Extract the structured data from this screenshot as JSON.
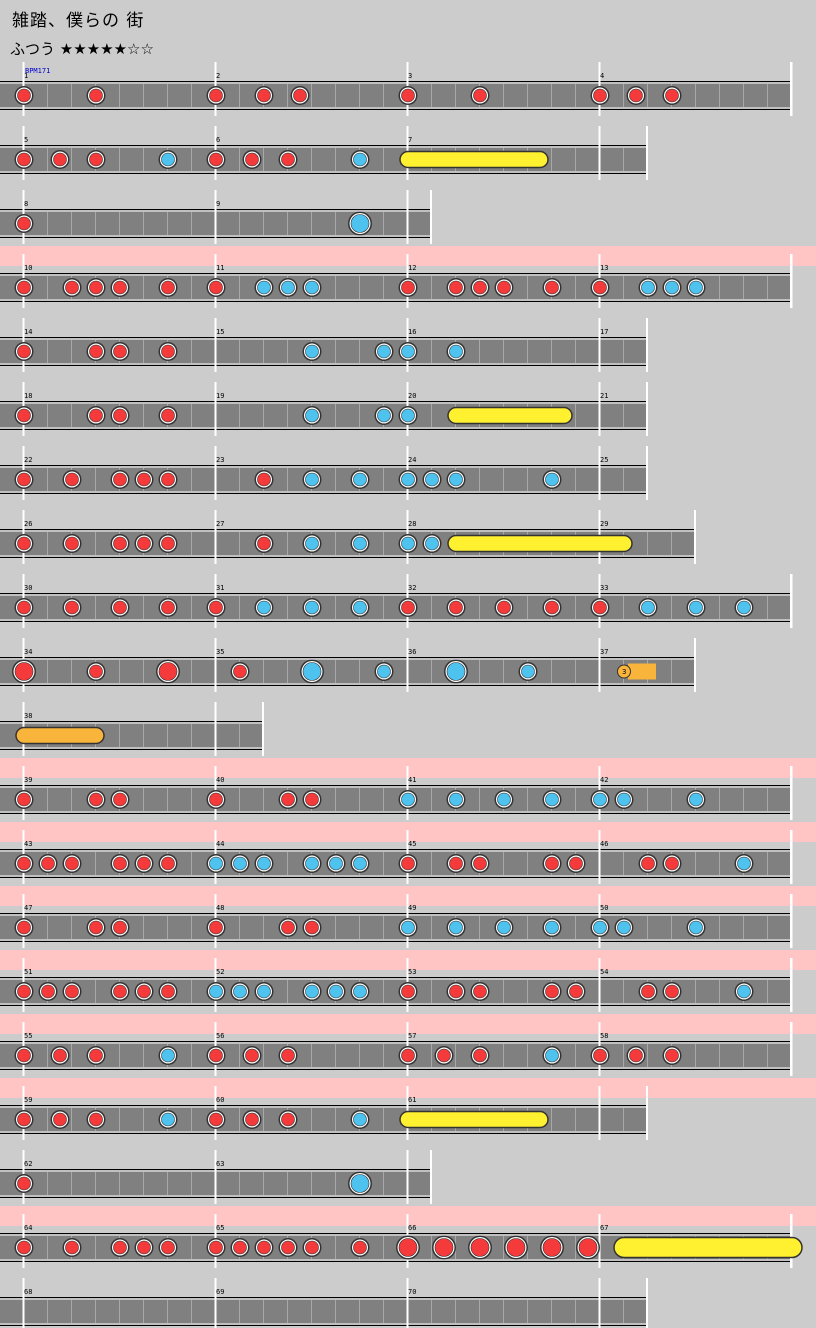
{
  "song": {
    "title": "雑踏、僕らの 街",
    "course": "ふつう",
    "stars": "★★★★★☆☆"
  },
  "bpm_label": "BPM171",
  "colors": {
    "background": "#cccccc",
    "gogo_band": "#ffc4c4",
    "lane": "#808080",
    "don": "#f43a3a",
    "ka": "#4fc3f0",
    "drumroll": "#fff030",
    "balloon": "#f9b43c"
  },
  "rows": [
    {
      "measures": [
        1,
        2,
        3,
        4
      ],
      "beats": 32,
      "gogo": false,
      "notes": [
        [
          0,
          "d"
        ],
        [
          3,
          "d"
        ],
        [
          8,
          "d"
        ],
        [
          10,
          "d"
        ],
        [
          11.5,
          "d"
        ],
        [
          16,
          "d"
        ],
        [
          19,
          "d"
        ],
        [
          24,
          "d"
        ],
        [
          25.5,
          "d"
        ],
        [
          27,
          "d"
        ]
      ]
    },
    {
      "measures": [
        5,
        6,
        7
      ],
      "beats": 26,
      "gogo": false,
      "notes": [
        [
          0,
          "d"
        ],
        [
          1.5,
          "d"
        ],
        [
          3,
          "d"
        ],
        [
          6,
          "k"
        ],
        [
          8,
          "d"
        ],
        [
          9.5,
          "d"
        ],
        [
          11,
          "d"
        ],
        [
          14,
          "k"
        ],
        [
          16,
          "r",
          21.5
        ]
      ]
    },
    {
      "measures": [
        8,
        9
      ],
      "beats": 17,
      "gogo": false,
      "notes": [
        [
          0,
          "d"
        ],
        [
          14,
          "K"
        ]
      ]
    },
    {
      "measures": [
        10,
        11,
        12,
        13
      ],
      "beats": 32,
      "gogo": true,
      "notes": [
        [
          0,
          "d"
        ],
        [
          2,
          "d"
        ],
        [
          3,
          "d"
        ],
        [
          4,
          "d"
        ],
        [
          6,
          "d"
        ],
        [
          8,
          "d"
        ],
        [
          10,
          "k"
        ],
        [
          11,
          "k"
        ],
        [
          12,
          "k"
        ],
        [
          16,
          "d"
        ],
        [
          18,
          "d"
        ],
        [
          19,
          "d"
        ],
        [
          20,
          "d"
        ],
        [
          22,
          "d"
        ],
        [
          24,
          "d"
        ],
        [
          26,
          "k"
        ],
        [
          27,
          "k"
        ],
        [
          28,
          "k"
        ]
      ]
    },
    {
      "measures": [
        14,
        15,
        16,
        17
      ],
      "beats": 26,
      "gogo": false,
      "notes": [
        [
          0,
          "d"
        ],
        [
          3,
          "d"
        ],
        [
          4,
          "d"
        ],
        [
          6,
          "d"
        ],
        [
          12,
          "k"
        ],
        [
          15,
          "k"
        ],
        [
          16,
          "k"
        ],
        [
          18,
          "k"
        ]
      ]
    },
    {
      "measures": [
        18,
        19,
        20,
        21
      ],
      "beats": 26,
      "gogo": false,
      "notes": [
        [
          0,
          "d"
        ],
        [
          3,
          "d"
        ],
        [
          4,
          "d"
        ],
        [
          6,
          "d"
        ],
        [
          12,
          "k"
        ],
        [
          15,
          "k"
        ],
        [
          16,
          "k"
        ],
        [
          18,
          "r",
          22.5
        ]
      ]
    },
    {
      "measures": [
        22,
        23,
        24,
        25
      ],
      "beats": 26,
      "gogo": false,
      "notes": [
        [
          0,
          "d"
        ],
        [
          2,
          "d"
        ],
        [
          4,
          "d"
        ],
        [
          5,
          "d"
        ],
        [
          6,
          "d"
        ],
        [
          10,
          "d"
        ],
        [
          12,
          "k"
        ],
        [
          14,
          "k"
        ],
        [
          16,
          "k"
        ],
        [
          17,
          "k"
        ],
        [
          18,
          "k"
        ],
        [
          22,
          "k"
        ]
      ]
    },
    {
      "measures": [
        26,
        27,
        28,
        29
      ],
      "beats": 28,
      "gogo": false,
      "notes": [
        [
          0,
          "d"
        ],
        [
          2,
          "d"
        ],
        [
          4,
          "d"
        ],
        [
          5,
          "d"
        ],
        [
          6,
          "d"
        ],
        [
          10,
          "d"
        ],
        [
          12,
          "k"
        ],
        [
          14,
          "k"
        ],
        [
          16,
          "k"
        ],
        [
          17,
          "k"
        ],
        [
          18,
          "r",
          25
        ]
      ]
    },
    {
      "measures": [
        30,
        31,
        32,
        33
      ],
      "beats": 32,
      "gogo": false,
      "notes": [
        [
          0,
          "d"
        ],
        [
          2,
          "d"
        ],
        [
          4,
          "d"
        ],
        [
          6,
          "d"
        ],
        [
          8,
          "d"
        ],
        [
          10,
          "k"
        ],
        [
          12,
          "k"
        ],
        [
          14,
          "k"
        ],
        [
          16,
          "d"
        ],
        [
          18,
          "d"
        ],
        [
          20,
          "d"
        ],
        [
          22,
          "d"
        ],
        [
          24,
          "d"
        ],
        [
          26,
          "k"
        ],
        [
          28,
          "k"
        ],
        [
          30,
          "k"
        ]
      ]
    },
    {
      "measures": [
        34,
        35,
        36,
        37
      ],
      "beats": 28,
      "gogo": false,
      "notes": [
        [
          0,
          "D"
        ],
        [
          3,
          "d"
        ],
        [
          6,
          "D"
        ],
        [
          9,
          "d"
        ],
        [
          12,
          "K"
        ],
        [
          15,
          "k"
        ],
        [
          18,
          "K"
        ],
        [
          21,
          "k"
        ],
        [
          25,
          "b",
          26
        ]
      ]
    },
    {
      "measures": [
        38
      ],
      "beats": 10,
      "gogo": false,
      "notes": [
        [
          0,
          "y",
          3
        ]
      ]
    },
    {
      "measures": [
        39,
        40,
        41,
        42
      ],
      "beats": 32,
      "gogo": true,
      "notes": [
        [
          0,
          "d"
        ],
        [
          3,
          "d"
        ],
        [
          4,
          "d"
        ],
        [
          8,
          "d"
        ],
        [
          11,
          "d"
        ],
        [
          12,
          "d"
        ],
        [
          16,
          "k"
        ],
        [
          18,
          "k"
        ],
        [
          20,
          "k"
        ],
        [
          22,
          "k"
        ],
        [
          24,
          "k"
        ],
        [
          25,
          "k"
        ],
        [
          28,
          "k"
        ]
      ]
    },
    {
      "measures": [
        43,
        44,
        45,
        46
      ],
      "beats": 32,
      "gogo": true,
      "notes": [
        [
          0,
          "d"
        ],
        [
          1,
          "d"
        ],
        [
          2,
          "d"
        ],
        [
          4,
          "d"
        ],
        [
          5,
          "d"
        ],
        [
          6,
          "d"
        ],
        [
          8,
          "k"
        ],
        [
          9,
          "k"
        ],
        [
          10,
          "k"
        ],
        [
          12,
          "k"
        ],
        [
          13,
          "k"
        ],
        [
          14,
          "k"
        ],
        [
          16,
          "d"
        ],
        [
          18,
          "d"
        ],
        [
          19,
          "d"
        ],
        [
          22,
          "d"
        ],
        [
          23,
          "d"
        ],
        [
          26,
          "d"
        ],
        [
          27,
          "d"
        ],
        [
          30,
          "k"
        ]
      ]
    },
    {
      "measures": [
        47,
        48,
        49,
        50
      ],
      "beats": 32,
      "gogo": true,
      "notes": [
        [
          0,
          "d"
        ],
        [
          3,
          "d"
        ],
        [
          4,
          "d"
        ],
        [
          8,
          "d"
        ],
        [
          11,
          "d"
        ],
        [
          12,
          "d"
        ],
        [
          16,
          "k"
        ],
        [
          18,
          "k"
        ],
        [
          20,
          "k"
        ],
        [
          22,
          "k"
        ],
        [
          24,
          "k"
        ],
        [
          25,
          "k"
        ],
        [
          28,
          "k"
        ]
      ]
    },
    {
      "measures": [
        51,
        52,
        53,
        54
      ],
      "beats": 32,
      "gogo": true,
      "notes": [
        [
          0,
          "d"
        ],
        [
          1,
          "d"
        ],
        [
          2,
          "d"
        ],
        [
          4,
          "d"
        ],
        [
          5,
          "d"
        ],
        [
          6,
          "d"
        ],
        [
          8,
          "k"
        ],
        [
          9,
          "k"
        ],
        [
          10,
          "k"
        ],
        [
          12,
          "k"
        ],
        [
          13,
          "k"
        ],
        [
          14,
          "k"
        ],
        [
          16,
          "d"
        ],
        [
          18,
          "d"
        ],
        [
          19,
          "d"
        ],
        [
          22,
          "d"
        ],
        [
          23,
          "d"
        ],
        [
          26,
          "d"
        ],
        [
          27,
          "d"
        ],
        [
          30,
          "k"
        ]
      ]
    },
    {
      "measures": [
        55,
        56,
        57,
        58
      ],
      "beats": 32,
      "gogo": true,
      "notes": [
        [
          0,
          "d"
        ],
        [
          1.5,
          "d"
        ],
        [
          3,
          "d"
        ],
        [
          6,
          "k"
        ],
        [
          8,
          "d"
        ],
        [
          9.5,
          "d"
        ],
        [
          11,
          "d"
        ],
        [
          16,
          "d"
        ],
        [
          17.5,
          "d"
        ],
        [
          19,
          "d"
        ],
        [
          22,
          "k"
        ],
        [
          24,
          "d"
        ],
        [
          25.5,
          "d"
        ],
        [
          27,
          "d"
        ]
      ]
    },
    {
      "measures": [
        59,
        60,
        61
      ],
      "beats": 26,
      "gogo": true,
      "notes": [
        [
          0,
          "d"
        ],
        [
          1.5,
          "d"
        ],
        [
          3,
          "d"
        ],
        [
          6,
          "k"
        ],
        [
          8,
          "d"
        ],
        [
          9.5,
          "d"
        ],
        [
          11,
          "d"
        ],
        [
          14,
          "k"
        ],
        [
          16,
          "r",
          21.5
        ]
      ]
    },
    {
      "measures": [
        62,
        63
      ],
      "beats": 17,
      "gogo": false,
      "notes": [
        [
          0,
          "d"
        ],
        [
          14,
          "K"
        ]
      ]
    },
    {
      "measures": [
        64,
        65,
        66,
        67
      ],
      "beats": 32,
      "gogo": true,
      "notes": [
        [
          0,
          "d"
        ],
        [
          2,
          "d"
        ],
        [
          4,
          "d"
        ],
        [
          5,
          "d"
        ],
        [
          6,
          "d"
        ],
        [
          8,
          "d"
        ],
        [
          9,
          "d"
        ],
        [
          10,
          "d"
        ],
        [
          11,
          "d"
        ],
        [
          12,
          "d"
        ],
        [
          14,
          "d"
        ],
        [
          16,
          "D"
        ],
        [
          17.5,
          "D"
        ],
        [
          19,
          "D"
        ],
        [
          20.5,
          "D"
        ],
        [
          22,
          "D"
        ],
        [
          23.5,
          "D"
        ],
        [
          25,
          "R",
          32
        ]
      ]
    },
    {
      "measures": [
        68,
        69,
        70
      ],
      "beats": 26,
      "gogo": false,
      "notes": []
    }
  ]
}
